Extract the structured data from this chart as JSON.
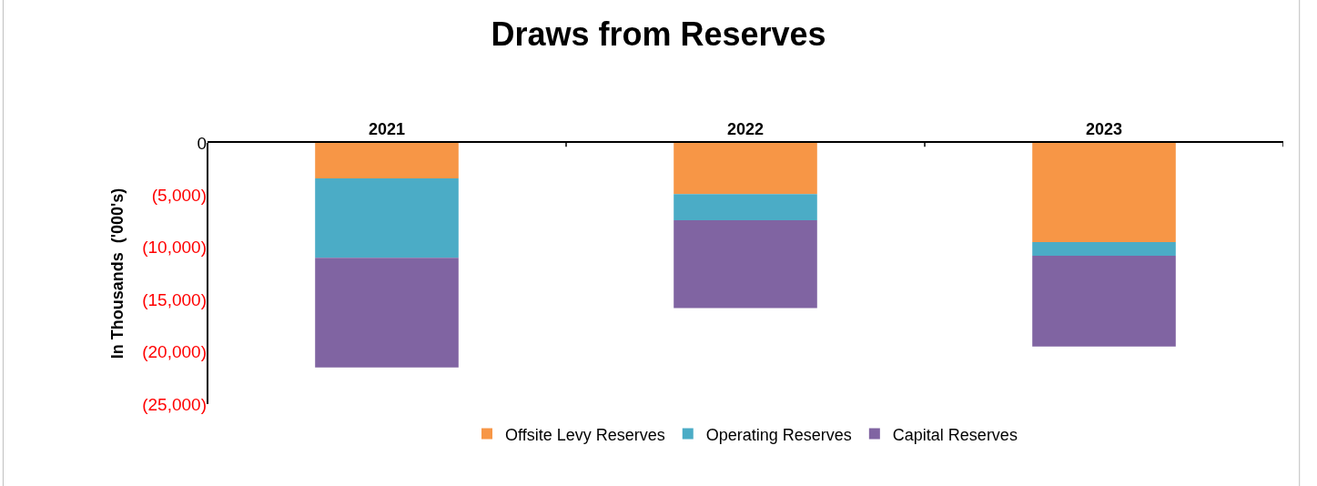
{
  "chart_data": {
    "type": "bar",
    "title": "Draws from Reserves",
    "ylabel": "In Thousands  ('000's)",
    "categories": [
      "2021",
      "2022",
      "2023"
    ],
    "stacked": true,
    "series": [
      {
        "name": "Offsite Levy Reserves",
        "color": "#f79646",
        "values": [
          -3400,
          -4900,
          -9500
        ]
      },
      {
        "name": "Operating Reserves",
        "color": "#4bacc6",
        "values": [
          -7600,
          -2500,
          -1300
        ]
      },
      {
        "name": "Capital Reserves",
        "color": "#8064a2",
        "values": [
          -10500,
          -8400,
          -8700
        ]
      }
    ],
    "ylim": [
      -25000,
      0
    ],
    "yticks": [
      0,
      {
        "value": -5000,
        "label": "(5,000)"
      },
      {
        "value": -10000,
        "label": "(10,000)"
      },
      {
        "value": -15000,
        "label": "(15,000)"
      },
      {
        "value": -20000,
        "label": "(20,000)"
      },
      {
        "value": -25000,
        "label": "(25,000)"
      }
    ],
    "legend": "bottom"
  }
}
